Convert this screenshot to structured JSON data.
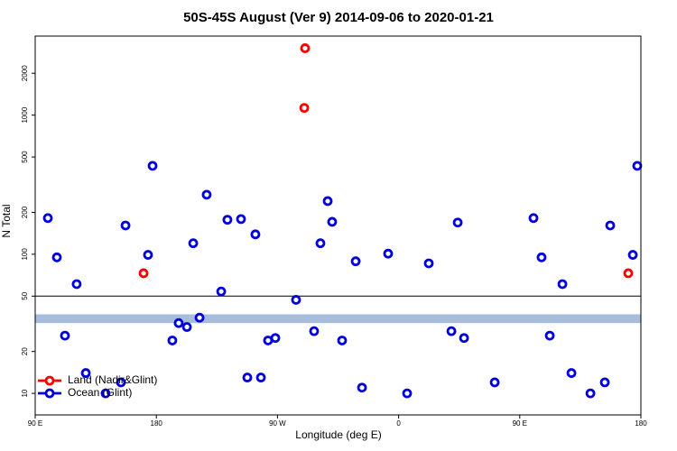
{
  "chart_data": {
    "type": "scatter",
    "title": "50S-45S August (Ver 9)   2014-09-06 to 2020-01-21",
    "xlabel": "Longitude (deg E)",
    "ylabel": "N Total",
    "xlim": [
      90,
      540
    ],
    "xticks": [
      {
        "value": 90,
        "label": "90 E"
      },
      180,
      {
        "value": 270,
        "label": "90 W"
      },
      {
        "value": 360,
        "label": "0"
      },
      {
        "value": 450,
        "label": "90 E"
      },
      {
        "value": 540,
        "label": "180"
      }
    ],
    "ylim": [
      7,
      3700
    ],
    "yscale": "log",
    "yticks": [
      10,
      20,
      50,
      100,
      200,
      500,
      1000,
      2000
    ],
    "hline": 50,
    "band": [
      32,
      37
    ],
    "band_color": "#a7bddb",
    "legend": "bottom-left",
    "series": [
      {
        "name": "Land (Nadir&Glint)",
        "color": "#ff0000",
        "x": [
          170.5,
          290.5,
          289.9,
          530.6
        ],
        "values": [
          73,
          3027,
          1127,
          73
        ]
      },
      {
        "name": "Ocean (Glint)",
        "color": "#0000dd",
        "x": [
          99.4,
          106.1,
          112.1,
          120.8,
          127.6,
          142.3,
          153.7,
          157.1,
          173.8,
          177.2,
          191.9,
          196.6,
          202.7,
          207.4,
          212.1,
          217.4,
          228.2,
          232.8,
          242.9,
          247.6,
          253.6,
          257.7,
          263.0,
          268.4,
          283.8,
          297.2,
          301.9,
          307.3,
          310.6,
          318.0,
          328.1,
          332.8,
          352.2,
          366.3,
          382.4,
          399.2,
          403.9,
          408.6,
          431.4,
          460.2,
          466.2,
          472.3,
          481.7,
          488.4,
          502.5,
          513.2,
          517.2,
          534.0,
          537.3
        ],
        "values": [
          182,
          95,
          26,
          61,
          14,
          10,
          12,
          161,
          99,
          432,
          24,
          32,
          30,
          120,
          35,
          268,
          54,
          177,
          179,
          13,
          139,
          13,
          24,
          25,
          47,
          28,
          120,
          241,
          171,
          24,
          89,
          11,
          101,
          10,
          86,
          28,
          169,
          25,
          12,
          182,
          95,
          26,
          61,
          14,
          10,
          12,
          161,
          99,
          432
        ]
      }
    ]
  }
}
